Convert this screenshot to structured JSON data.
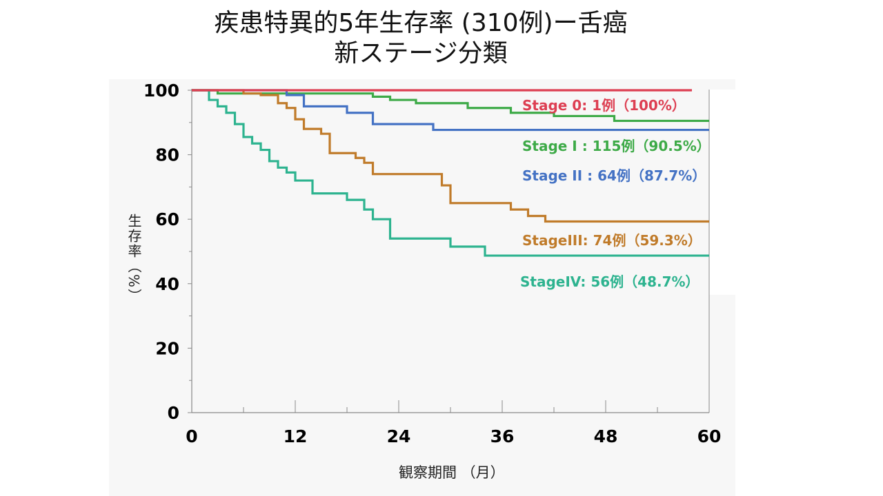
{
  "slide": {
    "title_line1": "疾患特異的5年生存率 (310例)ー舌癌",
    "title_line2": "新ステージ分類"
  },
  "chart_data": {
    "type": "line",
    "step": true,
    "xlabel": "観察期間 （月）",
    "ylabel": "生存率（%）",
    "xlim": [
      0,
      60
    ],
    "ylim": [
      0,
      100
    ],
    "xticks": [
      0,
      12,
      24,
      36,
      48,
      60
    ],
    "yticks": [
      0,
      20,
      40,
      60,
      80,
      100
    ],
    "grid": false,
    "series": [
      {
        "name": "Stage 0",
        "label": "Stage 0: 1例（100%）",
        "color": "#dd3f52",
        "x": [
          0,
          58
        ],
        "y": [
          100,
          100
        ]
      },
      {
        "name": "Stage I",
        "label": "Stage I : 115例（90.5%）",
        "color": "#3daa47",
        "x": [
          0,
          2,
          3,
          21,
          23,
          26,
          32,
          37,
          42,
          49,
          60
        ],
        "y": [
          100,
          100,
          99,
          98,
          97,
          96,
          94.5,
          93,
          92,
          90.5,
          90.5
        ],
        "labelY": 209
      },
      {
        "name": "Stage II",
        "label": "Stage II : 64例（87.7%）",
        "color": "#4472c4",
        "x": [
          0,
          11,
          13,
          18,
          21,
          28,
          60
        ],
        "y": [
          100,
          98.5,
          95,
          93,
          89.5,
          87.7,
          87.7
        ]
      },
      {
        "name": "Stage III",
        "label": "StageIII: 74例（59.3%）",
        "color": "#c07b2a",
        "x": [
          0,
          6,
          8,
          10,
          11,
          12,
          13,
          15,
          16,
          19,
          20,
          21,
          29,
          30,
          37,
          39,
          41,
          60
        ],
        "y": [
          100,
          99,
          98.5,
          96,
          94.5,
          91,
          88,
          86.5,
          80.5,
          79,
          77.5,
          74,
          70.5,
          65,
          63,
          61,
          59.3,
          59.3
        ]
      },
      {
        "name": "Stage IV",
        "label": "StageIV: 56例（48.7%）",
        "color": "#2db38f",
        "x": [
          0,
          2,
          3,
          4,
          5,
          6,
          7,
          8,
          9,
          10,
          11,
          12,
          14,
          18,
          20,
          21,
          23,
          30,
          34,
          60
        ],
        "y": [
          100,
          97,
          95,
          93,
          89.5,
          85.5,
          83.5,
          81.5,
          78,
          76,
          74.5,
          72,
          68,
          66,
          63,
          60,
          54,
          51.5,
          48.7,
          48.7
        ]
      }
    ]
  }
}
